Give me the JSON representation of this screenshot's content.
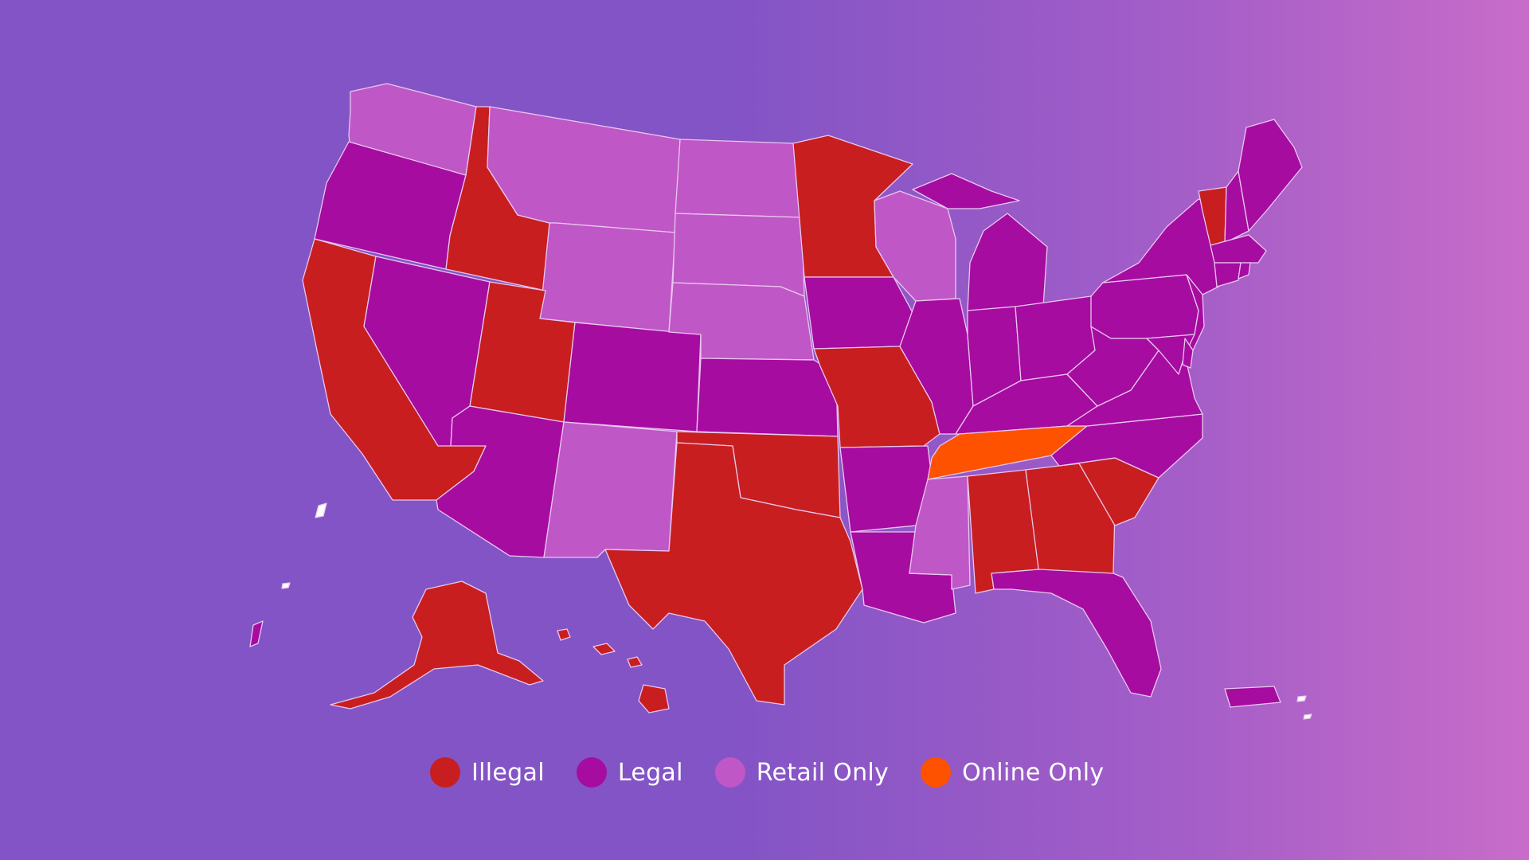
{
  "colors": {
    "illegal": "#c81e1f",
    "legal": "#a60ca0",
    "retail_only": "#c057c6",
    "online_only": "#ff5200",
    "islands": "#ffffff"
  },
  "legend": [
    {
      "key": "illegal",
      "label": "Illegal",
      "color": "#c81e1f"
    },
    {
      "key": "legal",
      "label": "Legal",
      "color": "#a60ca0"
    },
    {
      "key": "retail_only",
      "label": "Retail Only",
      "color": "#c057c6"
    },
    {
      "key": "online_only",
      "label": "Online Only",
      "color": "#ff5200"
    }
  ],
  "map": {
    "regions": {
      "WA": "retail_only",
      "MT": "retail_only",
      "ND": "retail_only",
      "SD": "retail_only",
      "WY": "retail_only",
      "NE": "retail_only",
      "NM": "retail_only",
      "WI": "retail_only",
      "MS": "retail_only",
      "OR": "legal",
      "NV": "legal",
      "AZ": "legal",
      "CO": "legal",
      "KS": "legal",
      "IA": "legal",
      "IL": "legal",
      "AR": "legal",
      "LA": "legal",
      "MI": "legal",
      "IN": "legal",
      "OH": "legal",
      "KY": "legal",
      "WV": "legal",
      "VA": "legal",
      "NC": "legal",
      "PA": "legal",
      "NY": "legal",
      "NJ": "legal",
      "MD": "legal",
      "DE": "legal",
      "NH": "legal",
      "ME": "legal",
      "MA": "legal",
      "CT": "legal",
      "RI": "legal",
      "FL": "legal",
      "PR": "legal",
      "GU": "legal",
      "CA": "illegal",
      "ID": "illegal",
      "UT": "illegal",
      "MN": "illegal",
      "MO": "illegal",
      "OK": "illegal",
      "TX": "illegal",
      "AL": "illegal",
      "GA": "illegal",
      "SC": "illegal",
      "VT": "illegal",
      "AK": "illegal",
      "HI": "illegal",
      "TN": "online_only"
    }
  }
}
